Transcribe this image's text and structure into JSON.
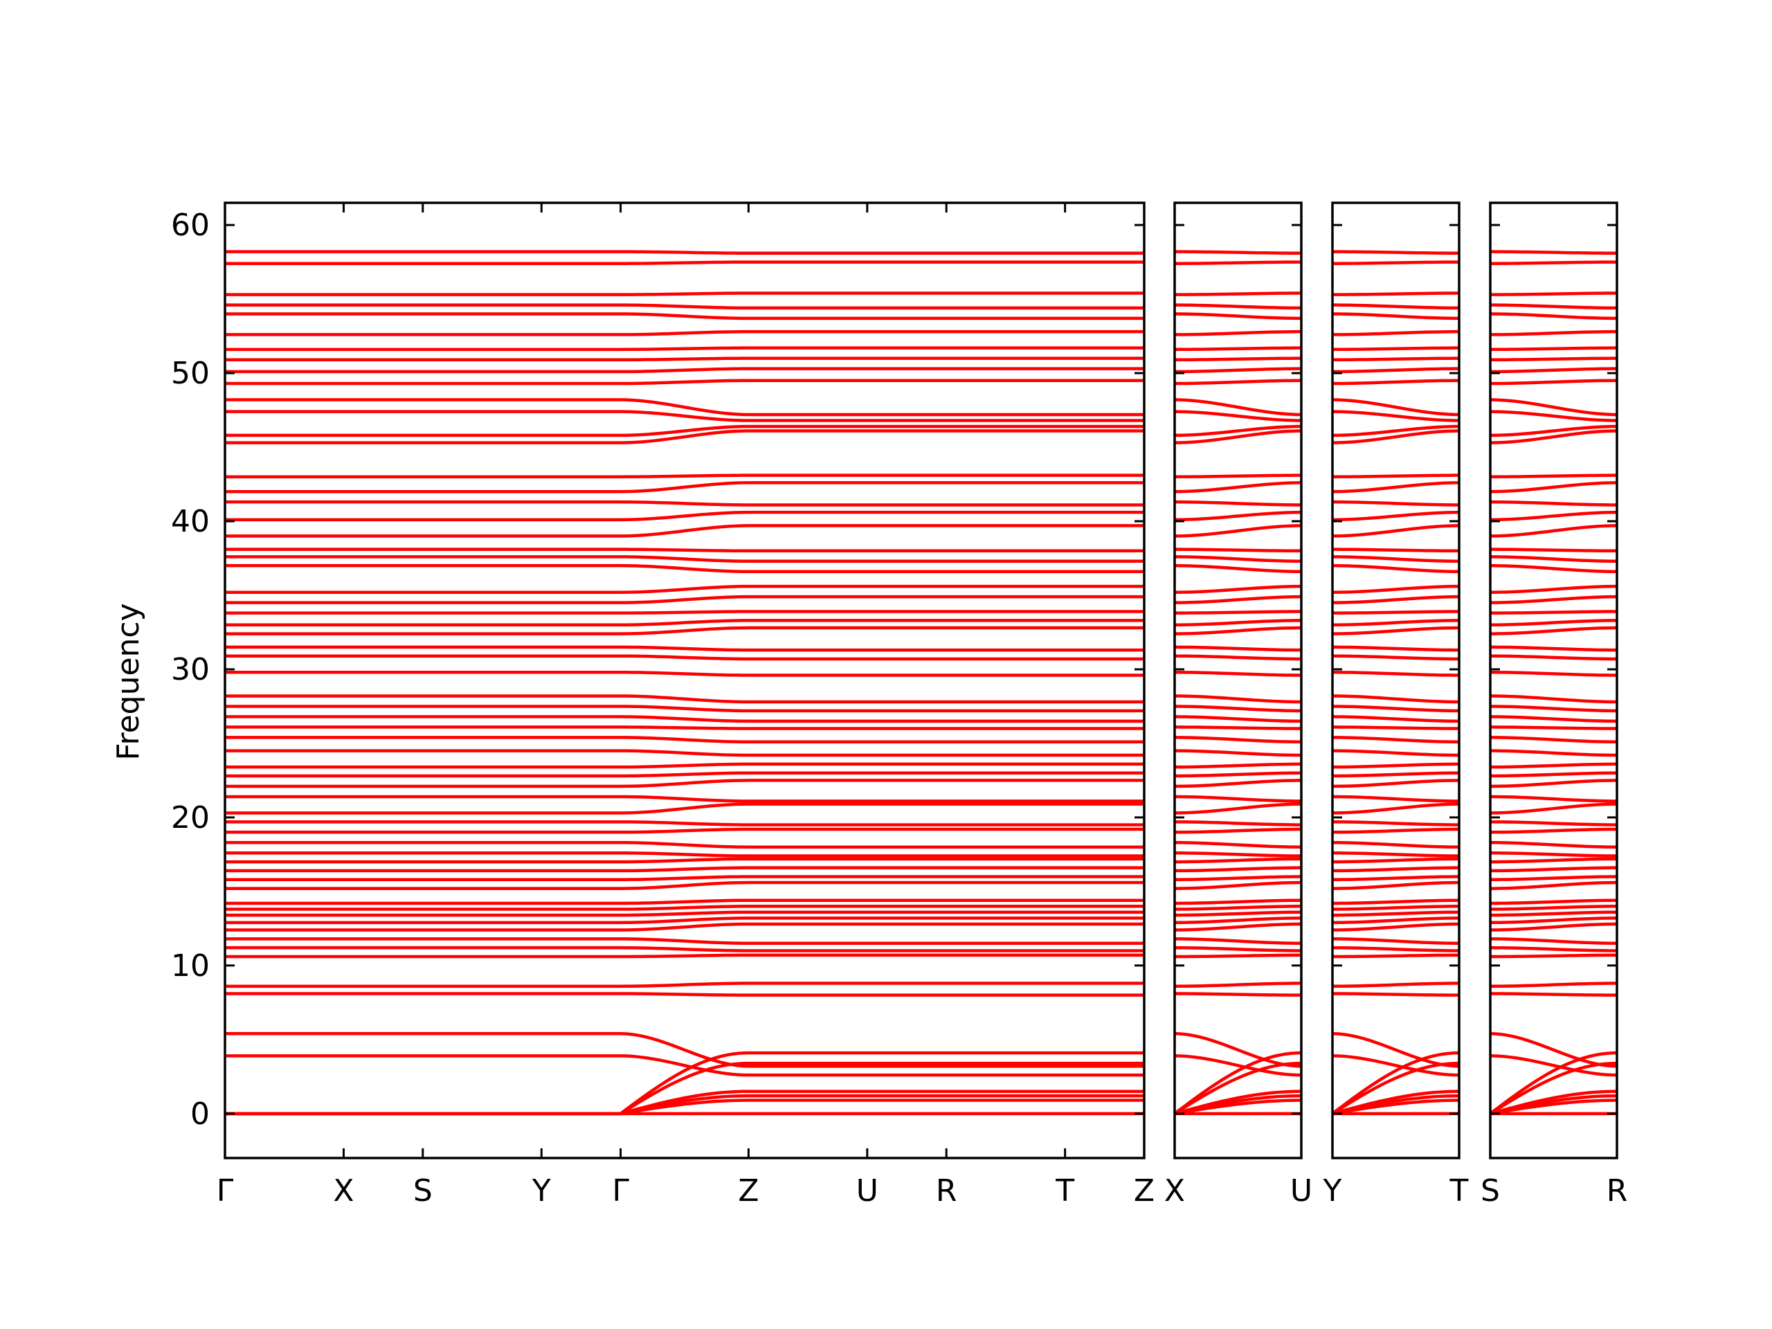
{
  "chart_data": {
    "type": "line",
    "ylabel": "Frequency",
    "ylim": [
      -3,
      61.5
    ],
    "y_ticks": [
      0,
      10,
      20,
      30,
      40,
      50,
      60
    ],
    "line_color": "#ff0000",
    "zero_line_color": "#0000aa",
    "panels": [
      {
        "x_labels": [
          "Γ",
          "X",
          "S",
          "Y",
          "Γ",
          "Z",
          "U",
          "R",
          "T",
          "Z"
        ],
        "x_positions": [
          0,
          0.9,
          1.5,
          2.4,
          3.0,
          3.97,
          4.87,
          5.47,
          6.37,
          6.97
        ]
      },
      {
        "x_labels": [
          "X",
          "U"
        ],
        "x_positions": [
          0,
          1
        ]
      },
      {
        "x_labels": [
          "Y",
          "T"
        ],
        "x_positions": [
          0,
          1
        ]
      },
      {
        "x_labels": [
          "S",
          "R"
        ],
        "x_positions": [
          0,
          1
        ]
      }
    ],
    "bands_flat": [
      [
        0,
        0
      ],
      [
        3.9,
        2.6
      ],
      [
        5.4,
        3.2
      ],
      [
        8.1,
        8.0
      ],
      [
        8.6,
        8.8
      ],
      [
        10.6,
        10.7
      ],
      [
        11.2,
        11.0
      ],
      [
        11.8,
        11.5
      ],
      [
        12.4,
        12.8
      ],
      [
        12.9,
        13.2
      ],
      [
        13.4,
        13.6
      ],
      [
        13.8,
        14.0
      ],
      [
        14.2,
        14.4
      ],
      [
        15.2,
        15.6
      ],
      [
        15.8,
        16.0
      ],
      [
        16.4,
        16.6
      ],
      [
        17.0,
        17.2
      ],
      [
        17.6,
        17.4
      ],
      [
        18.3,
        18.0
      ],
      [
        19.0,
        19.2
      ],
      [
        19.7,
        19.5
      ],
      [
        20.3,
        20.9
      ],
      [
        21.4,
        21.1
      ],
      [
        22.1,
        22.5
      ],
      [
        22.8,
        23.0
      ],
      [
        23.4,
        23.6
      ],
      [
        24.5,
        24.2
      ],
      [
        25.4,
        25.1
      ],
      [
        26.1,
        26.0
      ],
      [
        26.8,
        26.5
      ],
      [
        27.5,
        27.2
      ],
      [
        28.2,
        27.8
      ],
      [
        29.8,
        29.6
      ],
      [
        30.9,
        30.7
      ],
      [
        31.5,
        31.3
      ],
      [
        32.4,
        32.8
      ],
      [
        33.0,
        33.3
      ],
      [
        33.8,
        33.9
      ],
      [
        34.5,
        34.9
      ],
      [
        35.2,
        35.6
      ],
      [
        37.0,
        36.6
      ],
      [
        37.6,
        37.3
      ],
      [
        38.1,
        38.0
      ],
      [
        39.0,
        39.7
      ],
      [
        40.1,
        40.6
      ],
      [
        41.3,
        41.1
      ],
      [
        42.0,
        42.6
      ],
      [
        43.0,
        43.1
      ],
      [
        45.3,
        46.1
      ],
      [
        45.8,
        46.4
      ],
      [
        47.4,
        46.8
      ],
      [
        48.2,
        47.2
      ],
      [
        49.3,
        49.5
      ],
      [
        50.1,
        50.3
      ],
      [
        50.9,
        51.0
      ],
      [
        51.6,
        51.7
      ],
      [
        52.6,
        52.8
      ],
      [
        54.0,
        53.7
      ],
      [
        54.6,
        54.4
      ],
      [
        55.3,
        55.4
      ],
      [
        57.4,
        57.5
      ],
      [
        58.2,
        58.1
      ]
    ],
    "bands_acoustic": [
      [
        0,
        4.1
      ],
      [
        0,
        3.4
      ],
      [
        0,
        1.5
      ],
      [
        0,
        1.2
      ],
      [
        0,
        0.9
      ]
    ]
  }
}
